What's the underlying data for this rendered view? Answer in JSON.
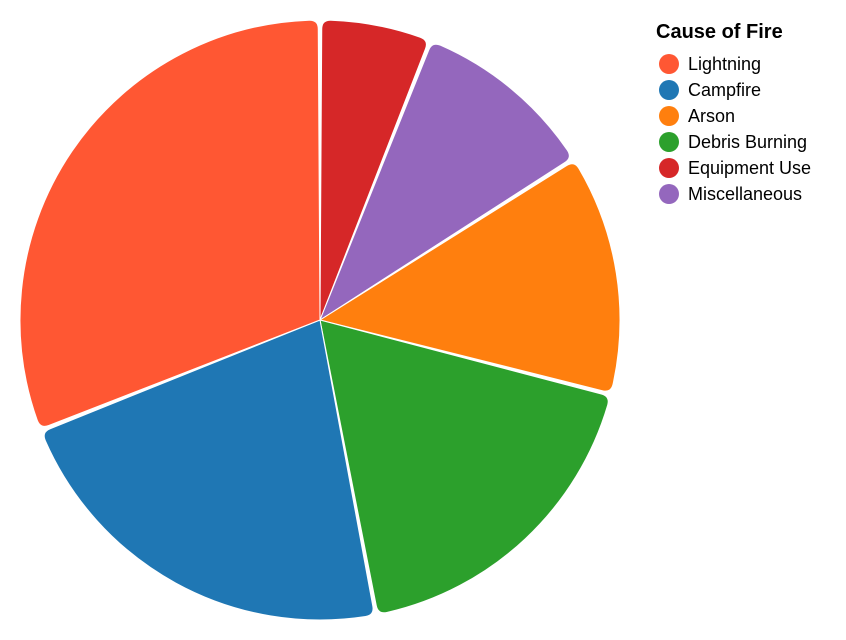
{
  "chart_data": {
    "type": "pie",
    "legend_title": "Cause of Fire",
    "legend_position": "top-right",
    "categories": [
      "Lightning",
      "Campfire",
      "Arson",
      "Debris Burning",
      "Equipment Use",
      "Miscellaneous"
    ],
    "values": [
      31,
      22,
      13,
      18,
      6,
      10
    ],
    "colors": [
      "#ff5733",
      "#1f77b4",
      "#ff7f0e",
      "#2ca02c",
      "#d62728",
      "#9467bd"
    ]
  }
}
